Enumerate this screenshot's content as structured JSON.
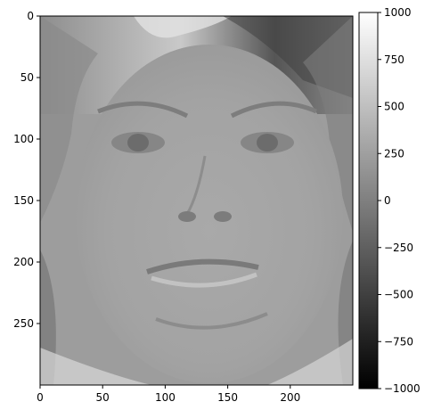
{
  "chart_data": {
    "type": "heatmap",
    "title": "",
    "xlabel": "",
    "ylabel": "",
    "image": {
      "width": 250,
      "height": 300,
      "colormap": "gray",
      "subject": "grayscale face image",
      "xlim": [
        0,
        250
      ],
      "ylim": [
        300,
        0
      ],
      "y_inverted": true
    },
    "x_ticks": [
      0,
      50,
      100,
      150,
      200
    ],
    "y_ticks": [
      0,
      50,
      100,
      150,
      200,
      250
    ],
    "colorbar": {
      "vmin": -1000,
      "vmax": 1000,
      "ticks": [
        -1000,
        -750,
        -500,
        -250,
        0,
        250,
        500,
        750,
        1000
      ],
      "tick_labels": [
        "−1000",
        "−750",
        "−500",
        "−250",
        "0",
        "250",
        "500",
        "750",
        "1000"
      ],
      "placement": "right"
    },
    "grid": false
  }
}
